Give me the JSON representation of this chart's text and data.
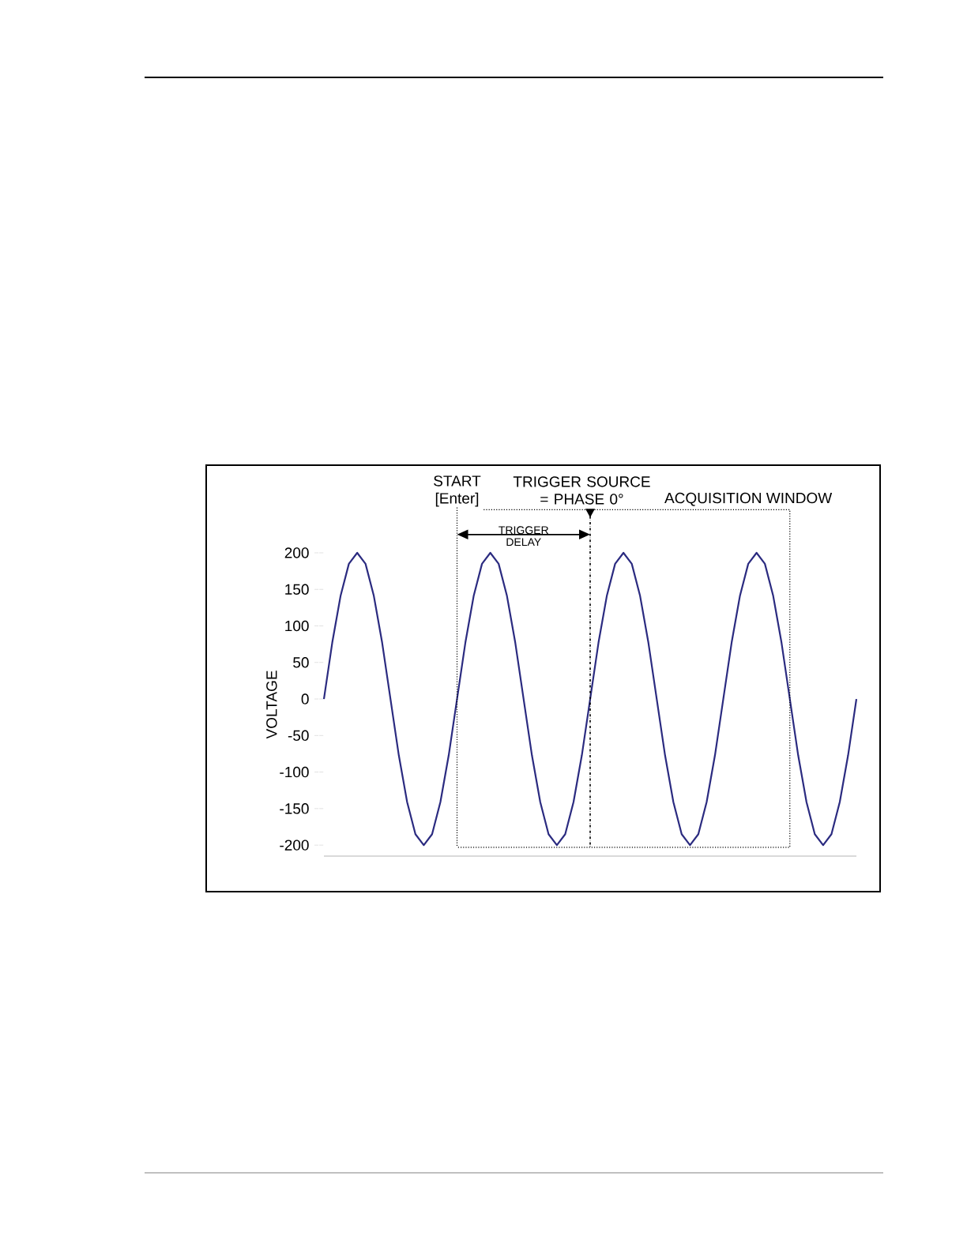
{
  "chart_data": {
    "type": "line",
    "ylabel": "VOLTAGE",
    "categories": [
      null,
      null,
      null,
      null,
      null,
      null,
      null,
      null,
      null,
      null,
      null,
      null,
      null,
      null,
      null,
      null,
      null,
      null,
      null,
      null,
      null,
      null,
      null,
      null,
      null,
      null,
      null,
      null,
      null,
      null,
      null,
      null,
      null,
      null,
      null,
      null,
      null,
      null,
      null,
      null,
      null,
      null,
      null,
      null,
      null,
      null,
      null,
      null,
      null,
      null,
      null,
      null,
      null,
      null,
      null,
      null,
      null,
      null,
      null,
      null,
      null,
      null,
      null,
      null,
      null
    ],
    "series": [
      {
        "color": "#2b2b80",
        "values": [
          0,
          77,
          141,
          185,
          200,
          185,
          141,
          77,
          0,
          -77,
          -141,
          -185,
          -200,
          -185,
          -141,
          -77,
          0,
          77,
          141,
          185,
          200,
          185,
          141,
          77,
          0,
          -77,
          -141,
          -185,
          -200,
          -185,
          -141,
          -77,
          0,
          77,
          141,
          185,
          200,
          185,
          141,
          77,
          0,
          -77,
          -141,
          -185,
          -200,
          -185,
          -141,
          -77,
          0,
          77,
          141,
          185,
          200,
          185,
          141,
          77,
          0,
          -77,
          -141,
          -185,
          -200,
          -185,
          -141,
          -77,
          0
        ]
      }
    ],
    "ylim": [
      -215,
      200
    ],
    "yticks": [
      -200,
      -150,
      -100,
      -50,
      0,
      50,
      100,
      150,
      200
    ],
    "annotations": [
      "START [Enter]",
      "TRIGGER SOURCE = PHASE 0°",
      "ACQUISITION WINDOW",
      "TRIGGER DELAY"
    ],
    "grid": false,
    "marker": "none",
    "line_style": "solid"
  }
}
